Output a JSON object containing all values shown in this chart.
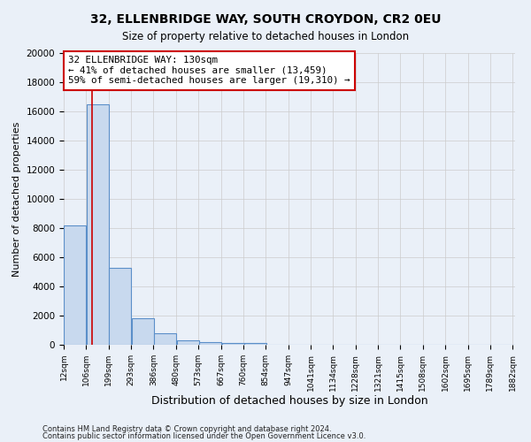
{
  "title1": "32, ELLENBRIDGE WAY, SOUTH CROYDON, CR2 0EU",
  "title2": "Size of property relative to detached houses in London",
  "xlabel": "Distribution of detached houses by size in London",
  "ylabel": "Number of detached properties",
  "bar_left_edges": [
    12,
    106,
    199,
    293,
    386,
    480,
    573,
    667,
    760,
    854,
    947,
    1041,
    1134,
    1228,
    1321,
    1415,
    1508,
    1602,
    1695,
    1789
  ],
  "bar_heights": [
    8200,
    16500,
    5300,
    1800,
    800,
    300,
    200,
    100,
    100,
    0,
    0,
    0,
    0,
    0,
    0,
    0,
    0,
    0,
    0,
    0
  ],
  "bin_width": 93,
  "bar_color": "#c8d9ee",
  "bar_edge_color": "#5b8fc9",
  "bar_edge_width": 0.8,
  "grid_color": "#cccccc",
  "background_color": "#eaf0f8",
  "property_line_x": 130,
  "property_line_color": "#cc0000",
  "annotation_line1": "32 ELLENBRIDGE WAY: 130sqm",
  "annotation_line2": "← 41% of detached houses are smaller (13,459)",
  "annotation_line3": "59% of semi-detached houses are larger (19,310) →",
  "annotation_box_color": "#ffffff",
  "annotation_box_edge": "#cc0000",
  "ylim": [
    0,
    20000
  ],
  "yticks": [
    0,
    2000,
    4000,
    6000,
    8000,
    10000,
    12000,
    14000,
    16000,
    18000,
    20000
  ],
  "xtick_labels": [
    "12sqm",
    "106sqm",
    "199sqm",
    "293sqm",
    "386sqm",
    "480sqm",
    "573sqm",
    "667sqm",
    "760sqm",
    "854sqm",
    "947sqm",
    "1041sqm",
    "1134sqm",
    "1228sqm",
    "1321sqm",
    "1415sqm",
    "1508sqm",
    "1602sqm",
    "1695sqm",
    "1789sqm",
    "1882sqm"
  ],
  "footer1": "Contains HM Land Registry data © Crown copyright and database right 2024.",
  "footer2": "Contains public sector information licensed under the Open Government Licence v3.0."
}
